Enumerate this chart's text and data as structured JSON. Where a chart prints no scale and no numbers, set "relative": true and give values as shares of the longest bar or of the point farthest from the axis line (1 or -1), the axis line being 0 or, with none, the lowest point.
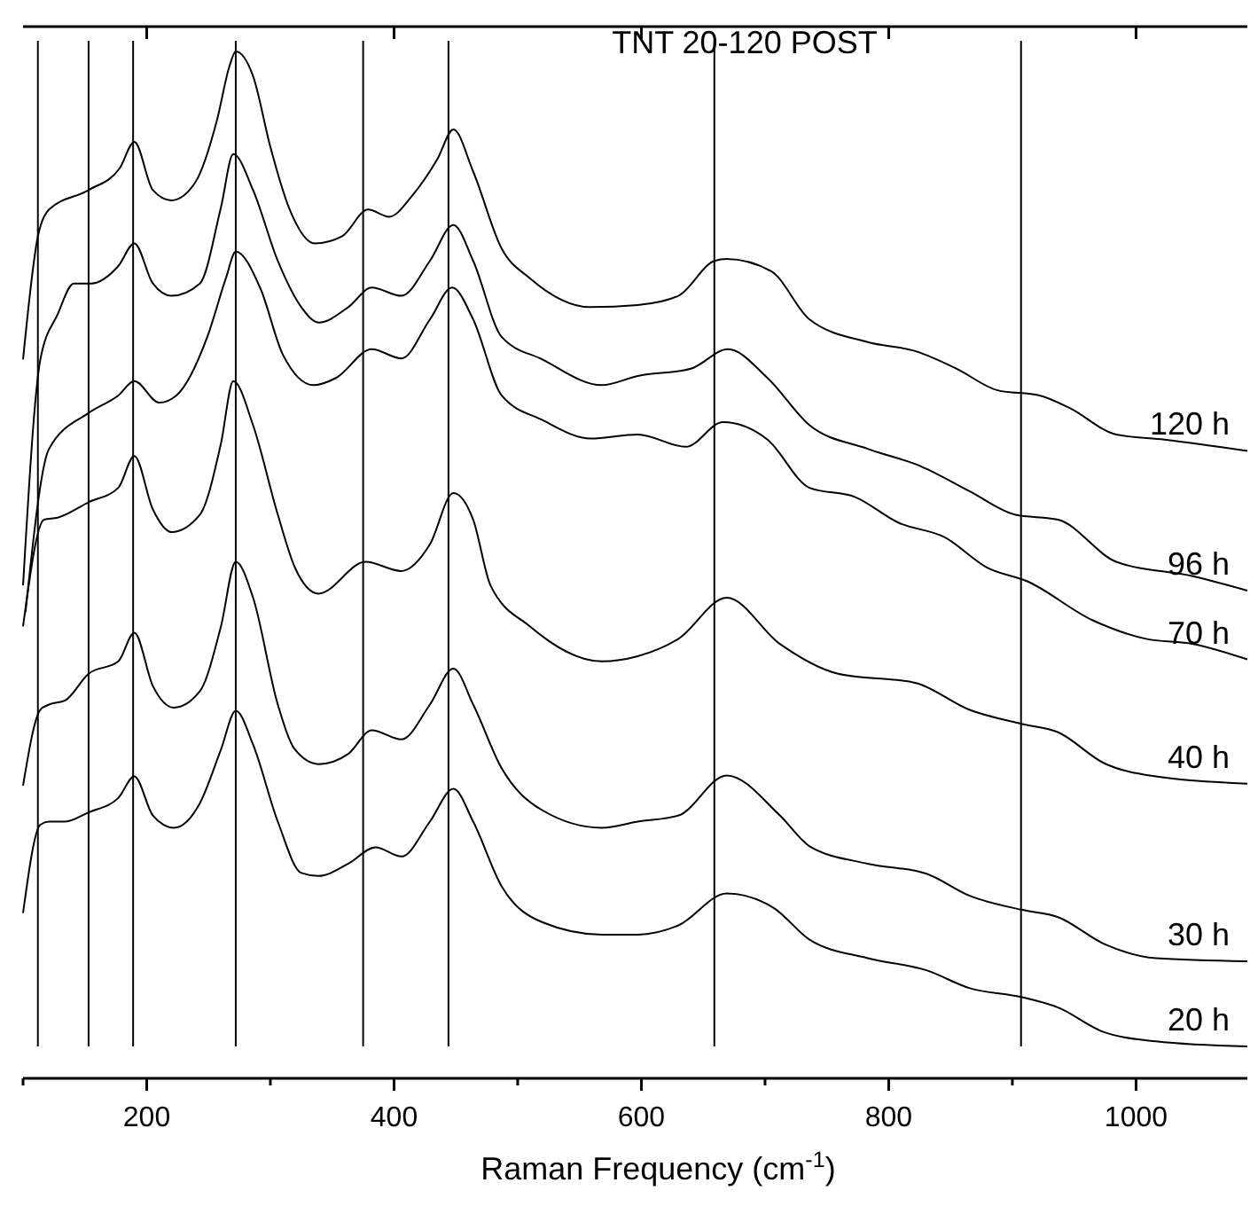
{
  "chart_data": {
    "type": "line",
    "title": "TNT 20-120 POST",
    "xlabel": "Raman Frequency (cm$^{-1}$)",
    "relative": true,
    "xlim": [
      100,
      1090
    ],
    "xticks": [
      {
        "value": 100,
        "label": null
      },
      200,
      {
        "value": 300,
        "label": null
      },
      400,
      {
        "value": 500,
        "label": null
      },
      600,
      {
        "value": 700,
        "label": null
      },
      800,
      {
        "value": 900,
        "label": null
      },
      1000
    ],
    "tick_labels": "x",
    "grid": false,
    "marker": "none",
    "line_style": "solid",
    "ref_lines": [
      {
        "axis": "x",
        "value": 112,
        "color": "#000000"
      },
      {
        "axis": "x",
        "value": 153,
        "color": "#000000"
      },
      {
        "axis": "x",
        "value": 189,
        "color": "#000000"
      },
      {
        "axis": "x",
        "value": 272,
        "color": "#000000"
      },
      {
        "axis": "x",
        "value": 375,
        "color": "#000000"
      },
      {
        "axis": "x",
        "value": 444,
        "color": "#000000"
      },
      {
        "axis": "x",
        "value": 659,
        "color": "#000000"
      },
      {
        "axis": "x",
        "value": 907,
        "color": "#000000"
      }
    ],
    "series": [
      {
        "name": "120 h",
        "color": "#000000",
        "x": [
          100,
          112,
          121,
          153,
          178,
          190,
          205,
          220,
          239,
          257,
          267,
          272,
          286,
          300,
          315,
          336,
          358,
          379,
          396,
          415,
          435,
          448,
          464,
          487,
          510,
          559,
          597,
          630,
          659,
          669,
          705,
          736,
          783,
          822,
          855,
          888,
          922,
          946,
          984,
          1023,
          1090
        ],
        "values": [
          0.7,
          0.82,
          0.846,
          0.865,
          0.886,
          0.912,
          0.865,
          0.855,
          0.872,
          0.934,
          0.986,
          1.0,
          0.976,
          0.907,
          0.848,
          0.813,
          0.82,
          0.846,
          0.839,
          0.86,
          0.895,
          0.924,
          0.883,
          0.808,
          0.779,
          0.751,
          0.753,
          0.762,
          0.796,
          0.798,
          0.786,
          0.739,
          0.717,
          0.708,
          0.691,
          0.67,
          0.665,
          0.653,
          0.627,
          0.622,
          0.611
        ]
      },
      {
        "name": "96 h",
        "color": "#000000",
        "x": [
          100,
          114,
          128,
          141,
          155,
          177,
          190,
          205,
          220,
          243,
          260,
          270,
          286,
          306,
          325,
          339,
          363,
          382,
          406,
          429,
          448,
          464,
          487,
          520,
          568,
          597,
          640,
          670,
          702,
          736,
          783,
          826,
          865,
          902,
          937,
          984,
          1046,
          1090
        ],
        "values": [
          0.48,
          0.7,
          0.744,
          0.774,
          0.774,
          0.791,
          0.813,
          0.774,
          0.762,
          0.774,
          0.848,
          0.9,
          0.865,
          0.796,
          0.751,
          0.736,
          0.751,
          0.77,
          0.762,
          0.796,
          0.831,
          0.796,
          0.722,
          0.7,
          0.675,
          0.684,
          0.691,
          0.71,
          0.682,
          0.636,
          0.613,
          0.596,
          0.572,
          0.549,
          0.544,
          0.503,
          0.489,
          0.475
        ]
      },
      {
        "name": "70 h",
        "color": "#000000",
        "x": [
          102,
          121,
          153,
          177,
          190,
          210,
          224,
          249,
          264,
          272,
          292,
          310,
          335,
          353,
          382,
          406,
          429,
          447,
          464,
          487,
          520,
          559,
          597,
          636,
          666,
          702,
          736,
          773,
          808,
          845,
          880,
          912,
          965,
          1008,
          1046,
          1090
        ],
        "values": [
          0.454,
          0.613,
          0.648,
          0.665,
          0.679,
          0.658,
          0.665,
          0.722,
          0.779,
          0.805,
          0.769,
          0.705,
          0.675,
          0.682,
          0.71,
          0.701,
          0.739,
          0.77,
          0.739,
          0.665,
          0.641,
          0.623,
          0.627,
          0.615,
          0.639,
          0.622,
          0.575,
          0.566,
          0.541,
          0.527,
          0.497,
          0.484,
          0.446,
          0.428,
          0.423,
          0.408
        ]
      },
      {
        "name": "40 h",
        "color": "#000000",
        "x": [
          100,
          117,
          128,
          153,
          177,
          190,
          205,
          220,
          243,
          260,
          270,
          286,
          306,
          320,
          339,
          377,
          406,
          429,
          448,
          464,
          478,
          510,
          568,
          597,
          630,
          669,
          712,
          759,
          822,
          865,
          908,
          937,
          974,
          1016,
          1090
        ],
        "values": [
          0.44,
          0.544,
          0.546,
          0.561,
          0.575,
          0.606,
          0.554,
          0.532,
          0.549,
          0.618,
          0.679,
          0.636,
          0.549,
          0.497,
          0.472,
          0.503,
          0.494,
          0.52,
          0.57,
          0.544,
          0.48,
          0.44,
          0.406,
          0.411,
          0.428,
          0.468,
          0.423,
          0.394,
          0.385,
          0.359,
          0.345,
          0.337,
          0.307,
          0.294,
          0.287
        ]
      },
      {
        "name": "30 h",
        "color": "#000000",
        "x": [
          100,
          114,
          121,
          134,
          153,
          177,
          190,
          205,
          222,
          243,
          260,
          272,
          286,
          306,
          320,
          339,
          363,
          382,
          406,
          429,
          448,
          464,
          487,
          520,
          568,
          597,
          630,
          669,
          712,
          736,
          783,
          831,
          865,
          908,
          937,
          974,
          1016,
          1090
        ],
        "values": [
          0.285,
          0.359,
          0.364,
          0.368,
          0.394,
          0.406,
          0.434,
          0.382,
          0.361,
          0.377,
          0.44,
          0.503,
          0.468,
          0.364,
          0.32,
          0.306,
          0.316,
          0.339,
          0.33,
          0.364,
          0.399,
          0.364,
          0.302,
          0.261,
          0.244,
          0.25,
          0.256,
          0.295,
          0.256,
          0.226,
          0.209,
          0.199,
          0.178,
          0.164,
          0.157,
          0.131,
          0.117,
          0.114
        ]
      },
      {
        "name": "20 h",
        "color": "#000000",
        "x": [
          100,
          114,
          121,
          134,
          153,
          177,
          190,
          205,
          222,
          243,
          260,
          272,
          286,
          306,
          325,
          339,
          363,
          385,
          406,
          429,
          448,
          464,
          487,
          520,
          568,
          597,
          630,
          669,
          707,
          736,
          783,
          831,
          865,
          908,
          937,
          974,
          1016,
          1090
        ],
        "values": [
          0.161,
          0.247,
          0.25,
          0.25,
          0.259,
          0.273,
          0.294,
          0.256,
          0.244,
          0.268,
          0.32,
          0.358,
          0.325,
          0.25,
          0.2,
          0.197,
          0.209,
          0.225,
          0.216,
          0.25,
          0.282,
          0.25,
          0.187,
          0.152,
          0.14,
          0.14,
          0.149,
          0.18,
          0.166,
          0.135,
          0.117,
          0.105,
          0.088,
          0.079,
          0.069,
          0.045,
          0.036,
          0.031
        ]
      }
    ]
  }
}
